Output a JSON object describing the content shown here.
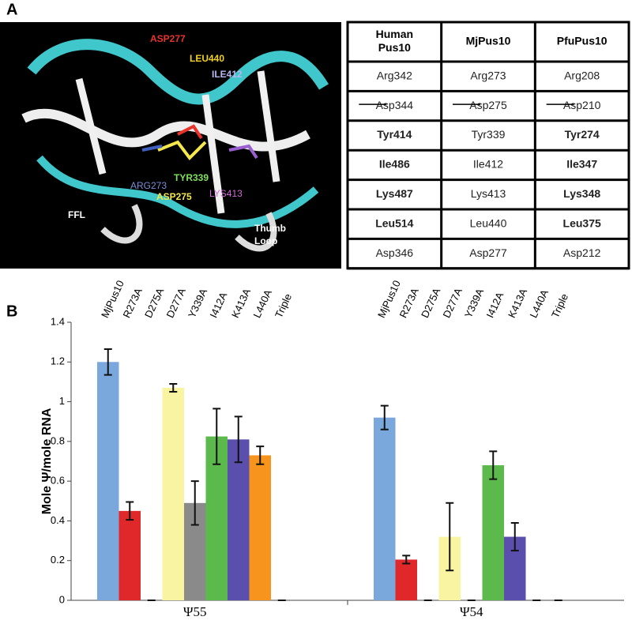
{
  "panel_labels": [
    "A",
    "B"
  ],
  "structure": {
    "labels": [
      {
        "text": "ASP277",
        "color": "#e8332c"
      },
      {
        "text": "LEU440",
        "color": "#f0d020"
      },
      {
        "text": "ILE412",
        "color": "#b9b6f0"
      },
      {
        "text": "ARG273",
        "color": "#7a8fd8"
      },
      {
        "text": "TYR339",
        "color": "#7fe05a"
      },
      {
        "text": "ASP275",
        "color": "#f4e84a"
      },
      {
        "text": "LYS413",
        "color": "#d06ad8"
      },
      {
        "text": "FFL",
        "color": "#ffffff"
      },
      {
        "text": "Thumb Loop",
        "color": "#ffffff"
      }
    ]
  },
  "table": {
    "header": [
      "Human Pus10",
      "MjPus10",
      "PfuPus10"
    ],
    "rows": [
      [
        "Arg342",
        "Arg273",
        "Arg208"
      ],
      [
        "Asp344",
        "Asp275",
        "Asp210"
      ],
      [
        "Tyr414",
        "Tyr339",
        "Tyr274"
      ],
      [
        "Ile486",
        "Ile412",
        "Ile347"
      ],
      [
        "Lys487",
        "Lys413",
        "Lys348"
      ],
      [
        "Leu514",
        "Leu440",
        "Leu375"
      ],
      [
        "Asp346",
        "Asp277",
        "Asp212"
      ]
    ]
  },
  "chart_data": {
    "type": "bar",
    "ylabel": "Mole Ψ/mole RNA",
    "categories": [
      "Ψ55",
      "Ψ54"
    ],
    "ylim": [
      0,
      1.4
    ],
    "yticks": [
      0,
      0.2,
      0.4,
      0.6,
      0.8,
      1,
      1.2,
      1.4
    ],
    "series": [
      {
        "name": "MjPus10",
        "color": "#7aa7dc",
        "values": [
          1.2,
          0.92
        ],
        "errors": [
          0.065,
          0.06
        ]
      },
      {
        "name": "R273A",
        "color": "#e0282a",
        "values": [
          0.45,
          0.205
        ],
        "errors": [
          0.045,
          0.02
        ]
      },
      {
        "name": "D275A",
        "color": "#333333",
        "values": [
          0,
          0
        ],
        "errors": [
          0,
          0
        ]
      },
      {
        "name": "D277A",
        "color": "#f9f4a2",
        "values": [
          1.07,
          0.32
        ],
        "errors": [
          0.02,
          0.17
        ]
      },
      {
        "name": "Y339A",
        "color": "#8a8a8a",
        "values": [
          0.49,
          0
        ],
        "errors": [
          0.11,
          0
        ]
      },
      {
        "name": "I412A",
        "color": "#5cba4c",
        "values": [
          0.825,
          0.68
        ],
        "errors": [
          0.14,
          0.07
        ]
      },
      {
        "name": "K413A",
        "color": "#5b4fae",
        "values": [
          0.81,
          0.32
        ],
        "errors": [
          0.115,
          0.07
        ]
      },
      {
        "name": "L440A",
        "color": "#f7941d",
        "values": [
          0.73,
          0
        ],
        "errors": [
          0.045,
          0
        ]
      },
      {
        "name": "Triple",
        "color": "#333333",
        "values": [
          0,
          0
        ],
        "errors": [
          0,
          0
        ]
      }
    ]
  }
}
